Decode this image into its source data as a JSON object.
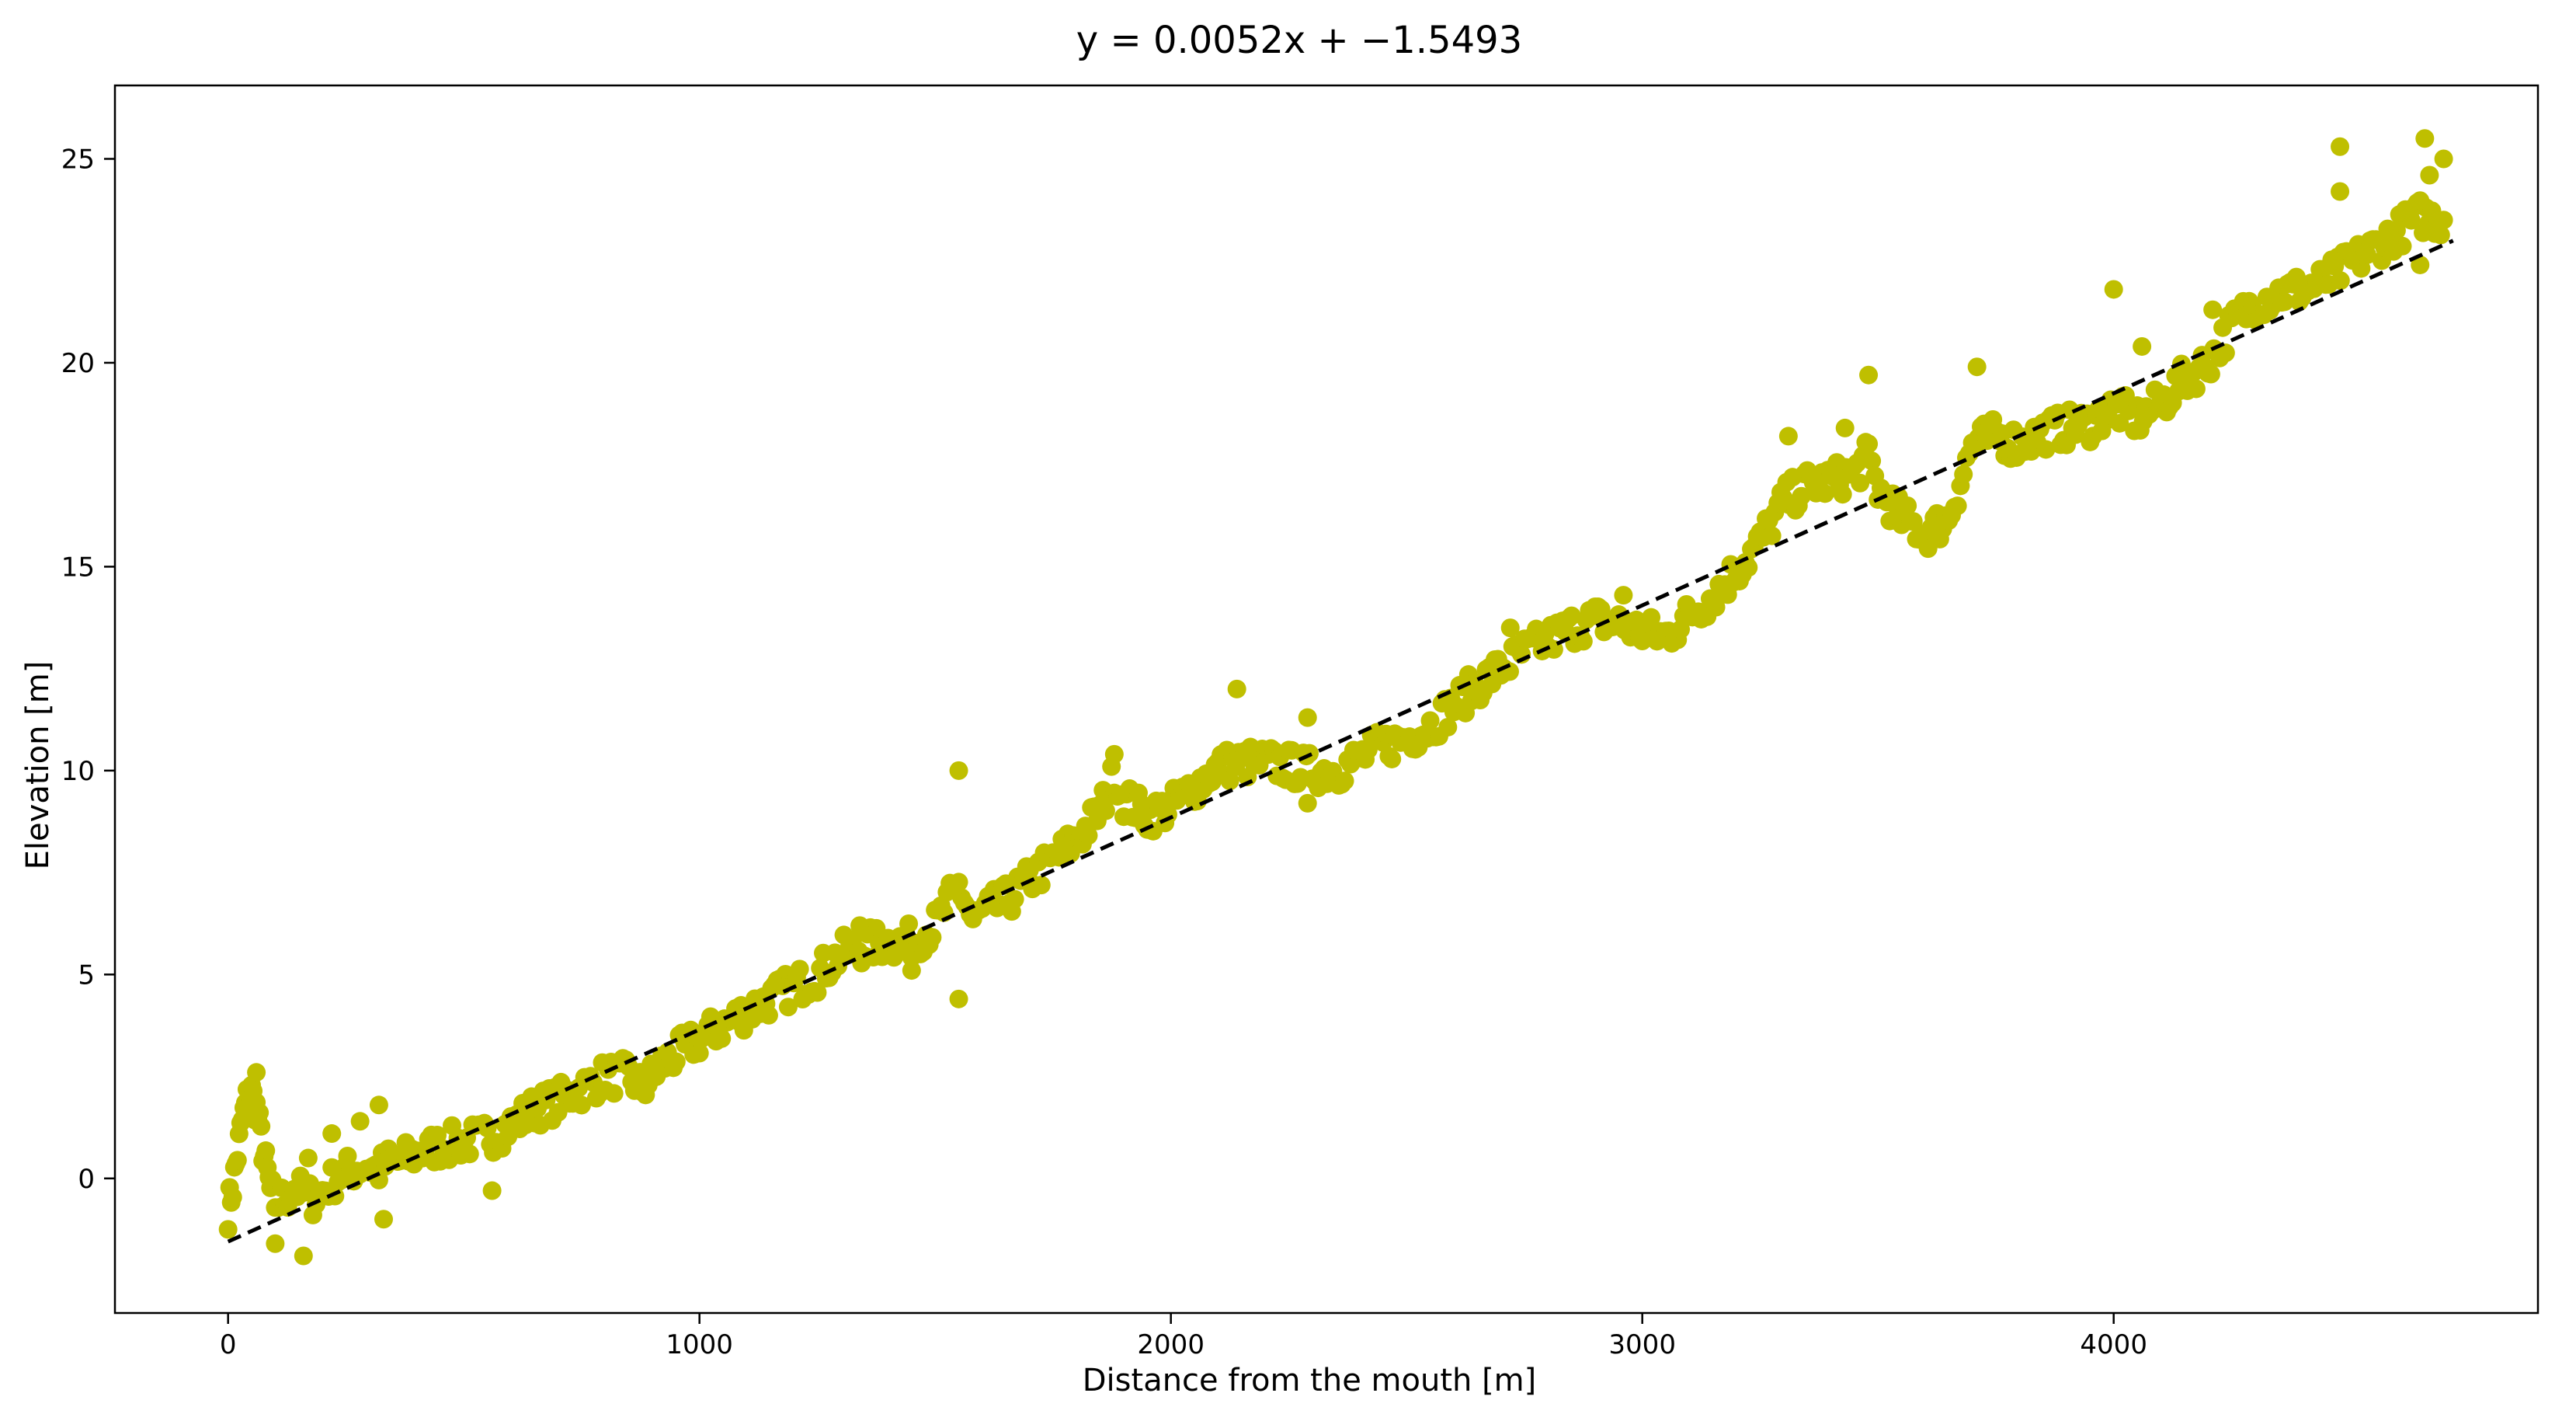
{
  "chart_data": {
    "type": "scatter",
    "title": "y = 0.0052x + −1.5493",
    "xlabel": "Distance from the mouth [m]",
    "ylabel": "Elevation [m]",
    "xlim": [
      -240,
      4900
    ],
    "ylim": [
      -3.3,
      26.8
    ],
    "xticks": [
      0,
      1000,
      2000,
      3000,
      4000
    ],
    "yticks": [
      0,
      5,
      10,
      15,
      20,
      25
    ],
    "grid": false,
    "legend": "none",
    "series": [
      {
        "type": "scatter",
        "color": "#bfbf00",
        "profile": [
          [
            0,
            -0.8
          ],
          [
            10,
            -0.2
          ],
          [
            20,
            0.6
          ],
          [
            30,
            1.4
          ],
          [
            40,
            1.9
          ],
          [
            50,
            2.1
          ],
          [
            60,
            1.7
          ],
          [
            70,
            1.0
          ],
          [
            80,
            0.3
          ],
          [
            90,
            -0.3
          ],
          [
            100,
            -0.6
          ],
          [
            120,
            -0.5
          ],
          [
            140,
            -0.2
          ],
          [
            160,
            -0.4
          ],
          [
            180,
            -0.5
          ],
          [
            200,
            -0.3
          ],
          [
            220,
            -0.1
          ],
          [
            240,
            0.1
          ],
          [
            260,
            0.2
          ],
          [
            280,
            0.3
          ],
          [
            300,
            0.3
          ],
          [
            320,
            0.2
          ],
          [
            340,
            0.4
          ],
          [
            360,
            0.4
          ],
          [
            400,
            0.6
          ],
          [
            450,
            0.8
          ],
          [
            500,
            0.9
          ],
          [
            550,
            1.0
          ],
          [
            600,
            1.3
          ],
          [
            650,
            1.7
          ],
          [
            700,
            1.9
          ],
          [
            750,
            2.2
          ],
          [
            800,
            2.5
          ],
          [
            850,
            2.5
          ],
          [
            880,
            2.2
          ],
          [
            920,
            2.8
          ],
          [
            1000,
            3.4
          ],
          [
            1100,
            4.1
          ],
          [
            1200,
            4.7
          ],
          [
            1250,
            5.0
          ],
          [
            1300,
            5.5
          ],
          [
            1350,
            5.7
          ],
          [
            1400,
            5.8
          ],
          [
            1450,
            5.8
          ],
          [
            1500,
            6.2
          ],
          [
            1550,
            7.2
          ],
          [
            1580,
            6.3
          ],
          [
            1600,
            6.5
          ],
          [
            1650,
            6.8
          ],
          [
            1700,
            7.3
          ],
          [
            1750,
            7.8
          ],
          [
            1800,
            8.3
          ],
          [
            1850,
            9.0
          ],
          [
            1880,
            9.9
          ],
          [
            1900,
            9.3
          ],
          [
            1950,
            8.9
          ],
          [
            2000,
            9.1
          ],
          [
            2050,
            9.6
          ],
          [
            2100,
            10.1
          ],
          [
            2150,
            10.2
          ],
          [
            2200,
            10.2
          ],
          [
            2250,
            10.1
          ],
          [
            2300,
            10.0
          ],
          [
            2350,
            10.0
          ],
          [
            2400,
            10.3
          ],
          [
            2450,
            10.6
          ],
          [
            2500,
            10.8
          ],
          [
            2550,
            11.1
          ],
          [
            2600,
            11.6
          ],
          [
            2650,
            12.1
          ],
          [
            2700,
            12.5
          ],
          [
            2750,
            12.9
          ],
          [
            2800,
            13.2
          ],
          [
            2850,
            13.5
          ],
          [
            2900,
            13.7
          ],
          [
            2950,
            13.6
          ],
          [
            3000,
            13.4
          ],
          [
            3050,
            13.3
          ],
          [
            3100,
            13.8
          ],
          [
            3150,
            14.3
          ],
          [
            3200,
            14.9
          ],
          [
            3250,
            15.6
          ],
          [
            3300,
            16.6
          ],
          [
            3350,
            17.0
          ],
          [
            3400,
            17.1
          ],
          [
            3450,
            17.3
          ],
          [
            3480,
            17.7
          ],
          [
            3500,
            16.9
          ],
          [
            3550,
            16.2
          ],
          [
            3600,
            15.8
          ],
          [
            3650,
            16.2
          ],
          [
            3700,
            18.0
          ],
          [
            3750,
            18.2
          ],
          [
            3800,
            18.0
          ],
          [
            3850,
            18.3
          ],
          [
            3900,
            18.4
          ],
          [
            3950,
            18.5
          ],
          [
            4000,
            18.9
          ],
          [
            4050,
            18.6
          ],
          [
            4100,
            19.0
          ],
          [
            4150,
            19.6
          ],
          [
            4200,
            20.0
          ],
          [
            4250,
            20.9
          ],
          [
            4300,
            21.5
          ],
          [
            4350,
            21.7
          ],
          [
            4400,
            21.8
          ],
          [
            4450,
            22.0
          ],
          [
            4500,
            22.4
          ],
          [
            4550,
            22.8
          ],
          [
            4600,
            23.2
          ],
          [
            4650,
            23.6
          ],
          [
            4700,
            23.5
          ]
        ],
        "outliers": [
          [
            60,
            2.6
          ],
          [
            100,
            -1.6
          ],
          [
            160,
            -1.9
          ],
          [
            170,
            0.5
          ],
          [
            220,
            1.1
          ],
          [
            280,
            1.4
          ],
          [
            320,
            1.8
          ],
          [
            330,
            -1.0
          ],
          [
            560,
            -0.3
          ],
          [
            1340,
            6.2
          ],
          [
            1450,
            5.1
          ],
          [
            1550,
            10.0
          ],
          [
            1550,
            4.4
          ],
          [
            1880,
            10.4
          ],
          [
            2140,
            12.0
          ],
          [
            2290,
            11.3
          ],
          [
            2290,
            9.2
          ],
          [
            2720,
            13.5
          ],
          [
            2960,
            14.3
          ],
          [
            3310,
            18.2
          ],
          [
            3430,
            18.4
          ],
          [
            3480,
            19.7
          ],
          [
            3710,
            19.9
          ],
          [
            4000,
            21.8
          ],
          [
            4060,
            20.4
          ],
          [
            4210,
            21.3
          ],
          [
            4480,
            25.3
          ],
          [
            4480,
            24.2
          ],
          [
            4650,
            22.4
          ],
          [
            4660,
            25.5
          ],
          [
            4670,
            24.6
          ],
          [
            4700,
            25.0
          ]
        ]
      },
      {
        "type": "line",
        "style": "dashed",
        "color": "#000000",
        "slope": 0.0052,
        "intercept": -1.5493,
        "x_range": [
          0,
          4720
        ]
      }
    ]
  }
}
